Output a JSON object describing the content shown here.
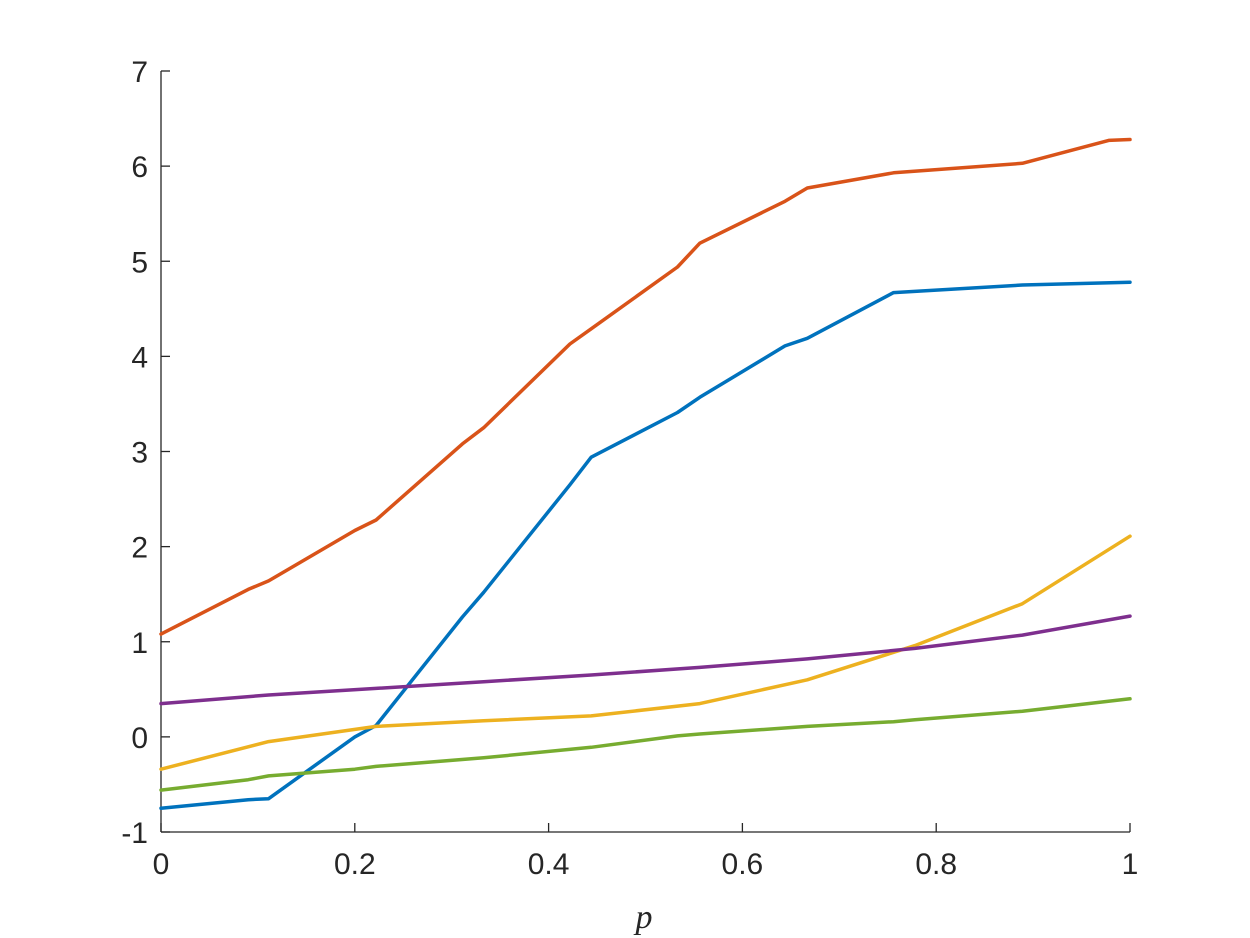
{
  "chart_data": {
    "type": "line",
    "title": "",
    "xlabel": "p",
    "ylabel": "",
    "xlim": [
      0,
      1
    ],
    "ylim": [
      -1,
      7
    ],
    "grid": false,
    "xticks": [
      0,
      0.2,
      0.4,
      0.6,
      0.8,
      1
    ],
    "xtick_labels": [
      "0",
      "0.2",
      "0.4",
      "0.6",
      "0.8",
      "1"
    ],
    "yticks": [
      -1,
      0,
      1,
      2,
      3,
      4,
      5,
      6,
      7
    ],
    "ytick_labels": [
      "-1",
      "0",
      "1",
      "2",
      "3",
      "4",
      "5",
      "6",
      "7"
    ],
    "series": [
      {
        "color": "#D95319",
        "points": [
          [
            0,
            1.08
          ],
          [
            0.09,
            1.55
          ],
          [
            0.111,
            1.64
          ],
          [
            0.2,
            2.17
          ],
          [
            0.222,
            2.28
          ],
          [
            0.311,
            3.08
          ],
          [
            0.333,
            3.25
          ],
          [
            0.422,
            4.13
          ],
          [
            0.444,
            4.29
          ],
          [
            0.533,
            4.94
          ],
          [
            0.556,
            5.19
          ],
          [
            0.644,
            5.63
          ],
          [
            0.667,
            5.77
          ],
          [
            0.756,
            5.93
          ],
          [
            0.889,
            6.03
          ],
          [
            0.978,
            6.27
          ],
          [
            1,
            6.28
          ]
        ]
      },
      {
        "color": "#0072BD",
        "points": [
          [
            0,
            -0.75
          ],
          [
            0.09,
            -0.66
          ],
          [
            0.111,
            -0.65
          ],
          [
            0.2,
            0.0
          ],
          [
            0.222,
            0.12
          ],
          [
            0.311,
            1.26
          ],
          [
            0.333,
            1.52
          ],
          [
            0.422,
            2.65
          ],
          [
            0.444,
            2.94
          ],
          [
            0.533,
            3.41
          ],
          [
            0.556,
            3.57
          ],
          [
            0.644,
            4.11
          ],
          [
            0.667,
            4.19
          ],
          [
            0.756,
            4.67
          ],
          [
            0.889,
            4.75
          ],
          [
            1,
            4.78
          ]
        ]
      },
      {
        "color": "#EDB120",
        "points": [
          [
            0,
            -0.34
          ],
          [
            0.111,
            -0.05
          ],
          [
            0.222,
            0.11
          ],
          [
            0.333,
            0.17
          ],
          [
            0.444,
            0.22
          ],
          [
            0.556,
            0.35
          ],
          [
            0.667,
            0.6
          ],
          [
            0.778,
            0.96
          ],
          [
            0.889,
            1.4
          ],
          [
            1,
            2.11
          ]
        ]
      },
      {
        "color": "#7E2F8E",
        "points": [
          [
            0,
            0.35
          ],
          [
            0.111,
            0.44
          ],
          [
            0.222,
            0.51
          ],
          [
            0.333,
            0.58
          ],
          [
            0.444,
            0.65
          ],
          [
            0.556,
            0.73
          ],
          [
            0.667,
            0.82
          ],
          [
            0.778,
            0.93
          ],
          [
            0.889,
            1.07
          ],
          [
            1,
            1.27
          ]
        ]
      },
      {
        "color": "#77AC30",
        "points": [
          [
            0,
            -0.56
          ],
          [
            0.09,
            -0.45
          ],
          [
            0.111,
            -0.41
          ],
          [
            0.2,
            -0.34
          ],
          [
            0.222,
            -0.31
          ],
          [
            0.333,
            -0.22
          ],
          [
            0.444,
            -0.11
          ],
          [
            0.533,
            0.01
          ],
          [
            0.556,
            0.03
          ],
          [
            0.667,
            0.11
          ],
          [
            0.756,
            0.16
          ],
          [
            0.778,
            0.18
          ],
          [
            0.889,
            0.27
          ],
          [
            1,
            0.4
          ]
        ]
      }
    ]
  }
}
